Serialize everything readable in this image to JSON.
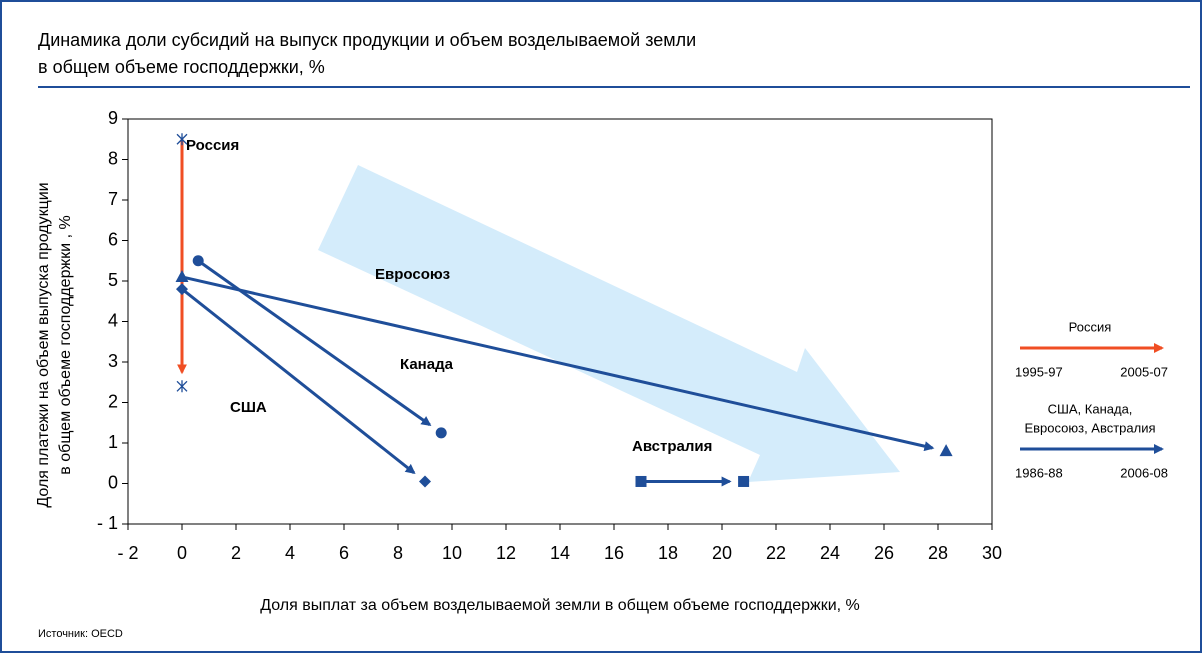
{
  "chart_data": {
    "type": "arrow-scatter",
    "title_lines": [
      "Динамика доли субсидий на выпуск продукции и объем возделываемой земли",
      "в общем объеме господдержки, %"
    ],
    "xlabel": "Доля выплат за объем возделываемой земли в общем объеме господдержки, %",
    "ylabel_lines": [
      "Доля платежи на объем выпуска продукции",
      "в общем объеме господдержки , %"
    ],
    "source": "Источник: OECD",
    "xlim": [
      -2,
      30
    ],
    "xticks": [
      {
        "value": -2,
        "label": "- 2"
      },
      0,
      2,
      4,
      6,
      8,
      10,
      12,
      14,
      16,
      18,
      20,
      22,
      24,
      26,
      28,
      30
    ],
    "ylim": [
      -1,
      9
    ],
    "yticks": [
      {
        "value": -1,
        "label": "- 1"
      },
      0,
      1,
      2,
      3,
      4,
      5,
      6,
      7,
      8,
      9
    ],
    "series": [
      {
        "name": "Россия",
        "marker": "asterisk",
        "color": "#f04e23",
        "marker_color": "#1f4e99",
        "x": [
          0,
          0
        ],
        "values": [
          8.5,
          2.4
        ]
      },
      {
        "name": "Канада",
        "marker": "circle",
        "color": "#1f4e99",
        "marker_color": "#1f4e99",
        "x": [
          0.6,
          9.6
        ],
        "values": [
          5.5,
          1.25
        ]
      },
      {
        "name": "США",
        "marker": "diamond",
        "color": "#1f4e99",
        "marker_color": "#1f4e99",
        "x": [
          0,
          9.0
        ],
        "values": [
          4.8,
          0.05
        ]
      },
      {
        "name": "Евросоюз",
        "marker": "triangle",
        "color": "#1f4e99",
        "marker_color": "#1f4e99",
        "x": [
          0,
          28.3
        ],
        "values": [
          5.1,
          0.8
        ]
      },
      {
        "name": "Австралия",
        "marker": "square",
        "color": "#1f4e99",
        "marker_color": "#1f4e99",
        "x": [
          17.0,
          20.8
        ],
        "values": [
          0.05,
          0.05
        ]
      }
    ],
    "legend": [
      {
        "title_lines": [
          "Россия"
        ],
        "color": "#f04e23",
        "from": "1995-97",
        "to": "2005-07"
      },
      {
        "title_lines": [
          "США, Канада,",
          "Евросоюз, Австралия"
        ],
        "color": "#1f4e99",
        "from": "1986-88",
        "to": "2006-08"
      }
    ]
  }
}
